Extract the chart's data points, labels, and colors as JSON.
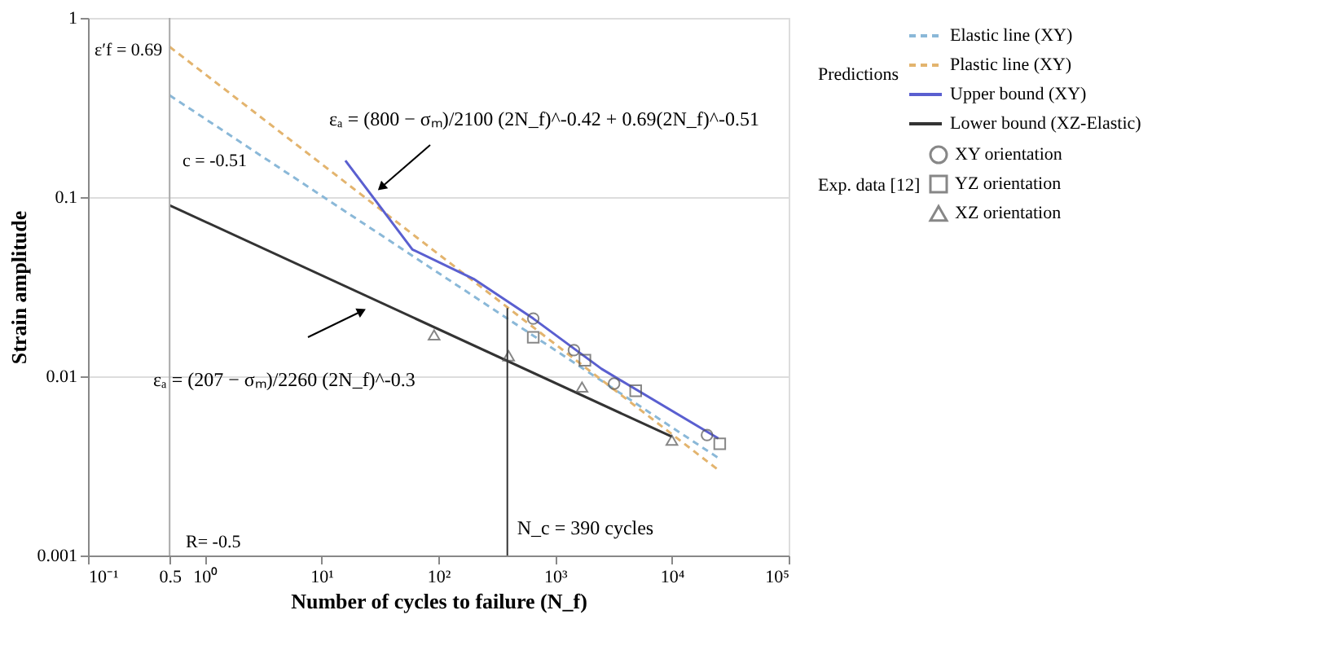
{
  "chart_data": {
    "type": "scatter",
    "xlabel": "Number of cycles to failure (N_f)",
    "ylabel": "Strain amplitude",
    "log": "xy",
    "grid": "y",
    "legend": "right",
    "legend_title": [
      "Exp. data [12]",
      "Predictions"
    ],
    "xlim": [
      0.1,
      100000
    ],
    "ylim": [
      0.001,
      1
    ],
    "xticks": [
      {
        "value": 0.1,
        "label": "10⁻¹"
      },
      0.5,
      {
        "value": 1,
        "label": "10⁰"
      },
      {
        "value": 10,
        "label": "10¹"
      },
      {
        "value": 100,
        "label": "10²"
      },
      {
        "value": 1000,
        "label": "10³"
      },
      {
        "value": 10000,
        "label": "10⁴"
      },
      {
        "value": 100000,
        "label": "10⁵"
      }
    ],
    "yticks": [
      0.001,
      0.01,
      0.1,
      1
    ],
    "series": [
      {
        "name": "XY orientation",
        "marker": "circle",
        "color": "#555555",
        "x": [
          650,
          1450,
          3200,
          20000
        ],
        "values": [
          0.021,
          0.014,
          0.0091,
          0.0047
        ]
      },
      {
        "name": "YZ orientation",
        "marker": "square",
        "color": "#555555",
        "x": [
          650,
          1800,
          4900,
          25700
        ],
        "values": [
          0.0165,
          0.0123,
          0.0083,
          0.0042
        ]
      },
      {
        "name": "XZ orientation",
        "marker": "triangle",
        "color": "#555555",
        "x": [
          92,
          400,
          1700,
          10000
        ],
        "values": [
          0.017,
          0.013,
          0.0087,
          0.0044
        ]
      },
      {
        "name": "Elastic line (XY)",
        "type": "line",
        "line_style": "dashed",
        "color": "#8ab8d8",
        "x": [
          0.5,
          25000
        ],
        "values": [
          0.37,
          0.0035
        ]
      },
      {
        "name": "Plastic line (XY)",
        "type": "line",
        "line_style": "dashed",
        "color": "#e3b46e",
        "x": [
          0.5,
          25000
        ],
        "values": [
          0.69,
          0.003
        ]
      },
      {
        "name": "Upper bound (XY)",
        "type": "line",
        "line_style": "solid",
        "color": "#5a5fd0",
        "x": [
          16,
          60,
          200,
          650,
          2500,
          25000
        ],
        "values": [
          0.16,
          0.051,
          0.035,
          0.021,
          0.011,
          0.0045
        ]
      },
      {
        "name": "Lower bound (XZ-Elastic)",
        "type": "line",
        "line_style": "solid",
        "color": "#333333",
        "x": [
          0.5,
          10000
        ],
        "values": [
          0.09,
          0.0046
        ]
      }
    ],
    "ref_lines": [
      {
        "axis": "x",
        "value": 0.5,
        "color": "#aaaaaa"
      }
    ],
    "annotations": [
      "ε′f = 0.69",
      "c = -0.51",
      "εₐ = (800 − σₘ)/2100 (2N_f)^-0.42 + 0.69(2N_f)^-0.51",
      "εₐ = (207 − σₘ)/2260 (2N_f)^-0.3",
      "R= -0.5",
      {
        "text": "N_c = 390 cycles",
        "x": 390,
        "y": 0.024
      }
    ]
  }
}
